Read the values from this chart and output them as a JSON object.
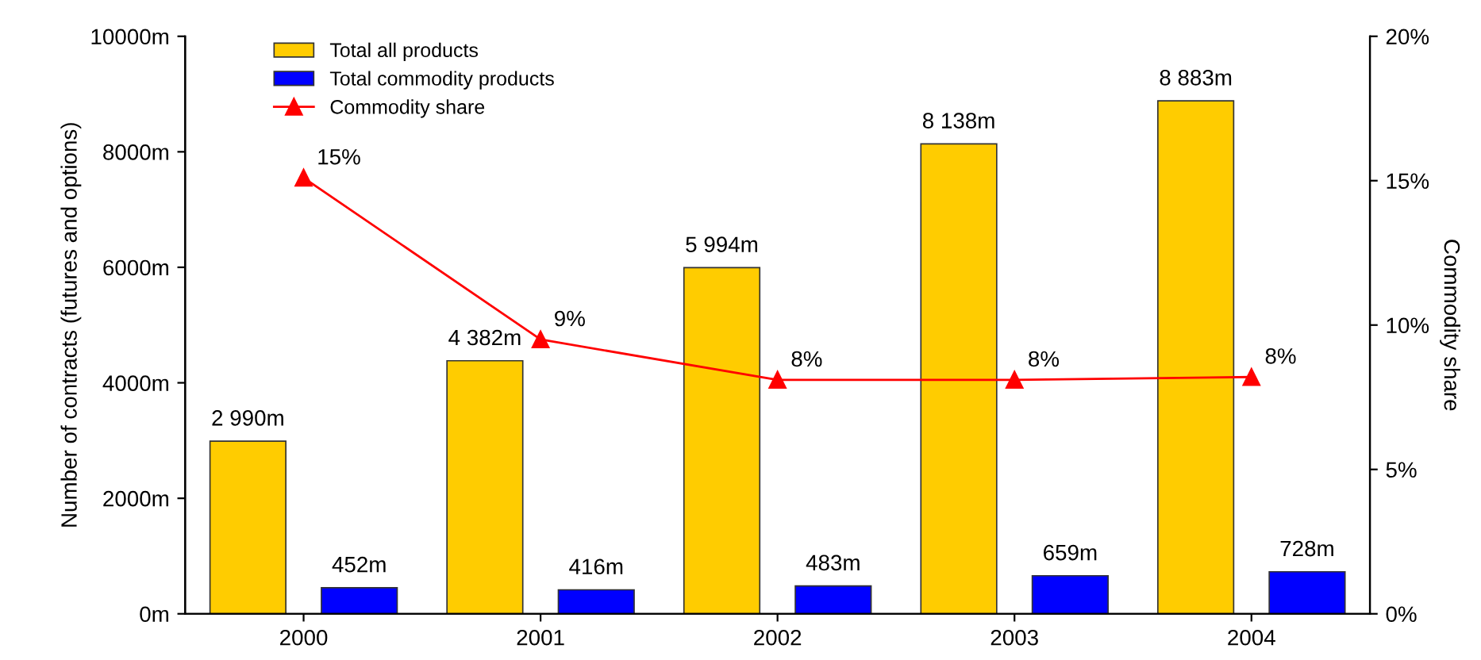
{
  "chart_data": {
    "type": "bar",
    "ylabel": "Number of contracts (futures and options)",
    "y2label": "Commodity share",
    "categories": [
      "2000",
      "2001",
      "2002",
      "2003",
      "2004"
    ],
    "series": [
      {
        "name": "Total all products",
        "color": "#ffcc00",
        "values": [
          2990,
          4382,
          5994,
          8138,
          8883
        ],
        "value_labels": [
          "2 990m",
          "4 382m",
          "5 994m",
          "8 138m",
          "8 883m"
        ]
      },
      {
        "name": "Total commodity products",
        "color": "#0000ff",
        "values": [
          452,
          416,
          483,
          659,
          728
        ],
        "value_labels": [
          "452m",
          "416m",
          "483m",
          "659m",
          "728m"
        ]
      },
      {
        "name": "Commodity share",
        "type": "line",
        "axis": "y2",
        "color": "#ff0000",
        "marker": "triangle",
        "values": [
          15.1,
          9.5,
          8.1,
          8.1,
          8.2
        ],
        "value_labels": [
          "15%",
          "9%",
          "8%",
          "8%",
          "8%"
        ]
      }
    ],
    "ylim": [
      0,
      10000
    ],
    "yticks": [
      {
        "value": 0,
        "label": "0m"
      },
      {
        "value": 2000,
        "label": "2000m"
      },
      {
        "value": 4000,
        "label": "4000m"
      },
      {
        "value": 6000,
        "label": "6000m"
      },
      {
        "value": 8000,
        "label": "8000m"
      },
      {
        "value": 10000,
        "label": "10000m"
      }
    ],
    "y2lim": [
      0,
      20
    ],
    "y2ticks": [
      {
        "value": 0,
        "label": "0%"
      },
      {
        "value": 5,
        "label": "5%"
      },
      {
        "value": 10,
        "label": "10%"
      },
      {
        "value": 15,
        "label": "15%"
      },
      {
        "value": 20,
        "label": "20%"
      }
    ],
    "legend": "top left",
    "grid": false
  }
}
